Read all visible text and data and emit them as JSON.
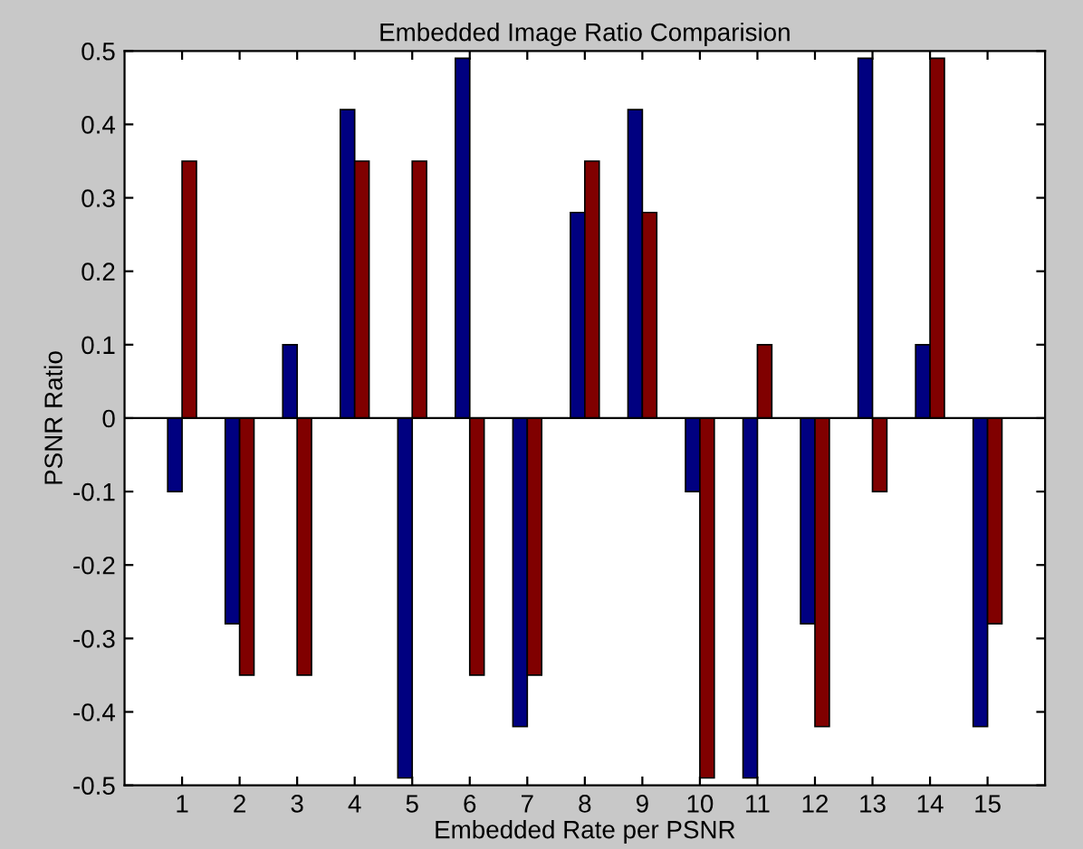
{
  "chart_data": {
    "type": "bar",
    "title": "Embedded Image Ratio Comparision",
    "xlabel": "Embedded Rate per PSNR",
    "ylabel": "PSNR Ratio",
    "x": [
      1,
      2,
      3,
      4,
      5,
      6,
      7,
      8,
      9,
      10,
      11,
      12,
      13,
      14,
      15
    ],
    "series": [
      {
        "color": "#000080",
        "values": [
          -0.1,
          -0.28,
          0.1,
          0.42,
          -0.49,
          0.49,
          -0.42,
          0.28,
          0.42,
          -0.1,
          -0.49,
          -0.28,
          0.49,
          0.1,
          -0.42
        ]
      },
      {
        "color": "#800000",
        "values": [
          0.35,
          -0.35,
          -0.35,
          0.35,
          0.35,
          -0.35,
          -0.35,
          0.35,
          0.28,
          -0.49,
          0.1,
          -0.42,
          -0.1,
          0.49,
          -0.28
        ]
      }
    ],
    "xlim": [
      0,
      16
    ],
    "xticks": [
      1,
      2,
      3,
      4,
      5,
      6,
      7,
      8,
      9,
      10,
      11,
      12,
      13,
      14,
      15
    ],
    "ylim": [
      -0.5,
      0.5
    ],
    "yticks": [
      {
        "value": -0.5,
        "label": "-0.5"
      },
      {
        "value": -0.4,
        "label": "-0.4"
      },
      {
        "value": -0.3,
        "label": "-0.3"
      },
      {
        "value": -0.2,
        "label": "-0.2"
      },
      {
        "value": -0.1,
        "label": "-0.1"
      },
      0,
      0.1,
      0.2,
      0.3,
      0.4,
      0.5
    ],
    "ref_lines": [
      {
        "axis": "y",
        "value": 0,
        "color": "#000000"
      }
    ]
  }
}
